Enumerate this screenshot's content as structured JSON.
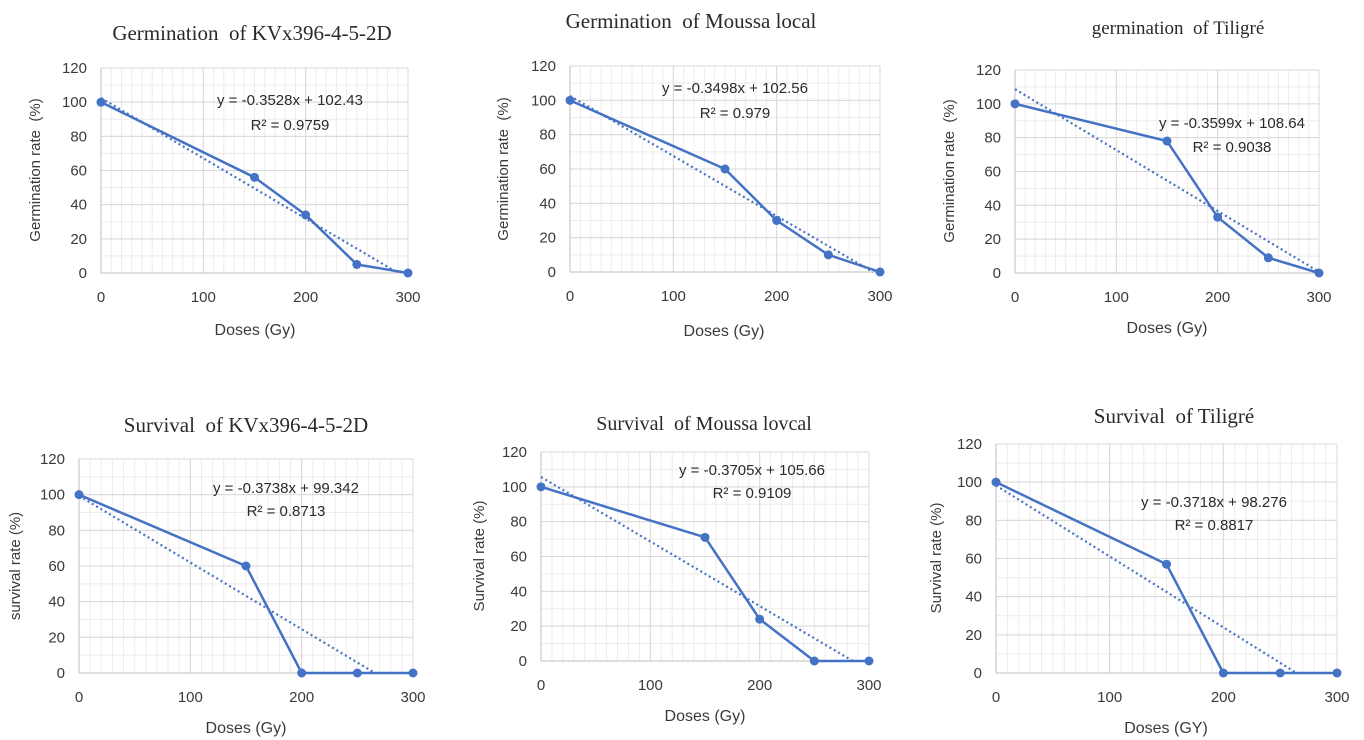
{
  "figure": {
    "colors": {
      "series": "#4472C4",
      "grid": "#d9d9d9",
      "axis": "#bfbfbf",
      "text": "#3a3a3a"
    }
  },
  "chart_data": [
    {
      "type": "line",
      "title": "Germination  of KVx396-4-5-2D",
      "xlabel": "Doses (Gy)",
      "ylabel": "Germination rate  (%)",
      "xlim": [
        0,
        300
      ],
      "ylim": [
        0,
        120
      ],
      "xticks": [
        0,
        100,
        200,
        300
      ],
      "yticks": [
        0,
        20,
        40,
        60,
        80,
        100,
        120
      ],
      "grid": true,
      "series": [
        {
          "x": [
            0,
            150,
            200,
            250,
            300
          ],
          "values": [
            100,
            56,
            34,
            5,
            0
          ]
        }
      ],
      "trendline": {
        "type": "linear",
        "slope": -0.3528,
        "intercept": 102.43
      },
      "equation": "y = -0.3528x + 102.43",
      "r2": "R² = 0.9759"
    },
    {
      "type": "line",
      "title": "Germination  of Moussa local",
      "xlabel": "Doses (Gy)",
      "ylabel": "Germination rate  (%)",
      "xlim": [
        0,
        300
      ],
      "ylim": [
        0,
        120
      ],
      "xticks": [
        0,
        100,
        200,
        300
      ],
      "yticks": [
        0,
        20,
        40,
        60,
        80,
        100,
        120
      ],
      "grid": true,
      "series": [
        {
          "x": [
            0,
            150,
            200,
            250,
            300
          ],
          "values": [
            100,
            60,
            30,
            10,
            0
          ]
        }
      ],
      "trendline": {
        "type": "linear",
        "slope": -0.3498,
        "intercept": 102.56
      },
      "equation": "y = -0.3498x + 102.56",
      "r2": "R² = 0.979"
    },
    {
      "type": "line",
      "title": "germination  of Tiligré",
      "xlabel": "Doses (Gy)",
      "ylabel": "Germination rate  (%)",
      "xlim": [
        0,
        300
      ],
      "ylim": [
        0,
        120
      ],
      "xticks": [
        0,
        100,
        200,
        300
      ],
      "yticks": [
        0,
        20,
        40,
        60,
        80,
        100,
        120
      ],
      "grid": true,
      "series": [
        {
          "x": [
            0,
            150,
            200,
            250,
            300
          ],
          "values": [
            100,
            78,
            33,
            9,
            0
          ]
        }
      ],
      "trendline": {
        "type": "linear",
        "slope": -0.3599,
        "intercept": 108.64
      },
      "equation": "y = -0.3599x + 108.64",
      "r2": "R² = 0.9038"
    },
    {
      "type": "line",
      "title": "Survival  of KVx396-4-5-2D",
      "xlabel": "Doses (Gy)",
      "ylabel": "survival rate (%)",
      "xlim": [
        0,
        300
      ],
      "ylim": [
        0,
        120
      ],
      "xticks": [
        0,
        100,
        200,
        300
      ],
      "yticks": [
        0,
        20,
        40,
        60,
        80,
        100,
        120
      ],
      "grid": true,
      "series": [
        {
          "x": [
            0,
            150,
            200,
            250,
            300
          ],
          "values": [
            100,
            60,
            0,
            0,
            0
          ]
        }
      ],
      "trendline": {
        "type": "linear",
        "slope": -0.3738,
        "intercept": 99.342
      },
      "equation": "y = -0.3738x + 99.342",
      "r2": "R² = 0.8713"
    },
    {
      "type": "line",
      "title": "Survival  of Moussa lovcal",
      "xlabel": "Doses (Gy)",
      "ylabel": "Survival rate (%)",
      "xlim": [
        0,
        300
      ],
      "ylim": [
        0,
        120
      ],
      "xticks": [
        0,
        100,
        200,
        300
      ],
      "yticks": [
        0,
        20,
        40,
        60,
        80,
        100,
        120
      ],
      "grid": true,
      "series": [
        {
          "x": [
            0,
            150,
            200,
            250,
            300
          ],
          "values": [
            100,
            71,
            24,
            0,
            0
          ]
        }
      ],
      "trendline": {
        "type": "linear",
        "slope": -0.3705,
        "intercept": 105.66
      },
      "equation": "y = -0.3705x + 105.66",
      "r2": "R² = 0.9109"
    },
    {
      "type": "line",
      "title": "Survival  of Tiligré",
      "xlabel": "Doses (GY)",
      "ylabel": "Survival rate (%)",
      "xlim": [
        0,
        300
      ],
      "ylim": [
        0,
        120
      ],
      "xticks": [
        0,
        100,
        200,
        300
      ],
      "yticks": [
        0,
        20,
        40,
        60,
        80,
        100,
        120
      ],
      "grid": true,
      "series": [
        {
          "x": [
            0,
            150,
            200,
            250,
            300
          ],
          "values": [
            100,
            57,
            0,
            0,
            0
          ]
        }
      ],
      "trendline": {
        "type": "linear",
        "slope": -0.3718,
        "intercept": 98.276
      },
      "equation": "y = -0.3718x + 98.276",
      "r2": "R² = 0.8817"
    }
  ]
}
